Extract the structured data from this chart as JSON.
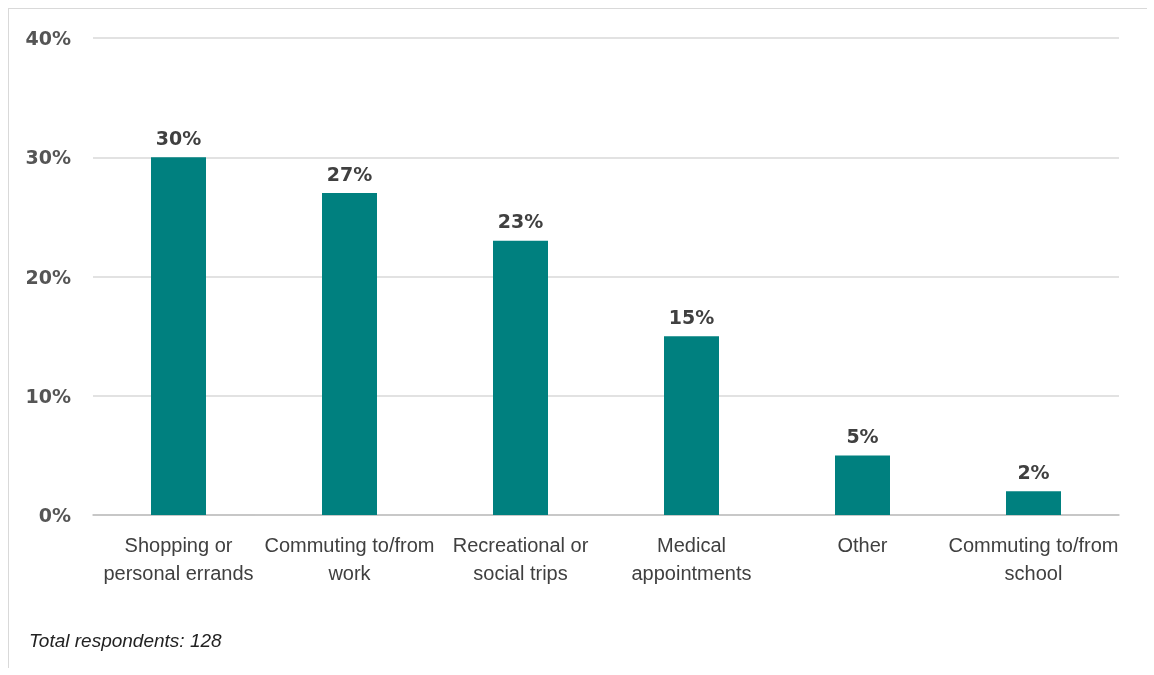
{
  "chart_data": {
    "type": "bar",
    "categories": [
      "Shopping or\npersonal errands",
      "Commuting to/from\nwork",
      "Recreational or\nsocial trips",
      "Medical\nappointments",
      "Other",
      "Commuting to/from\nschool"
    ],
    "values": [
      30,
      27,
      23,
      15,
      5,
      2
    ],
    "value_labels": [
      "30%",
      "27%",
      "23%",
      "15%",
      "5%",
      "2%"
    ],
    "color": "#00807f",
    "ylim": [
      0,
      40
    ],
    "yticks": [
      {
        "value": 0,
        "label": "0%"
      },
      {
        "value": 10,
        "label": "10%"
      },
      {
        "value": 20,
        "label": "20%"
      },
      {
        "value": 30,
        "label": "30%"
      },
      {
        "value": 40,
        "label": "40%"
      }
    ],
    "grid": "y",
    "annotations": [
      "Total respondents: 128"
    ]
  }
}
